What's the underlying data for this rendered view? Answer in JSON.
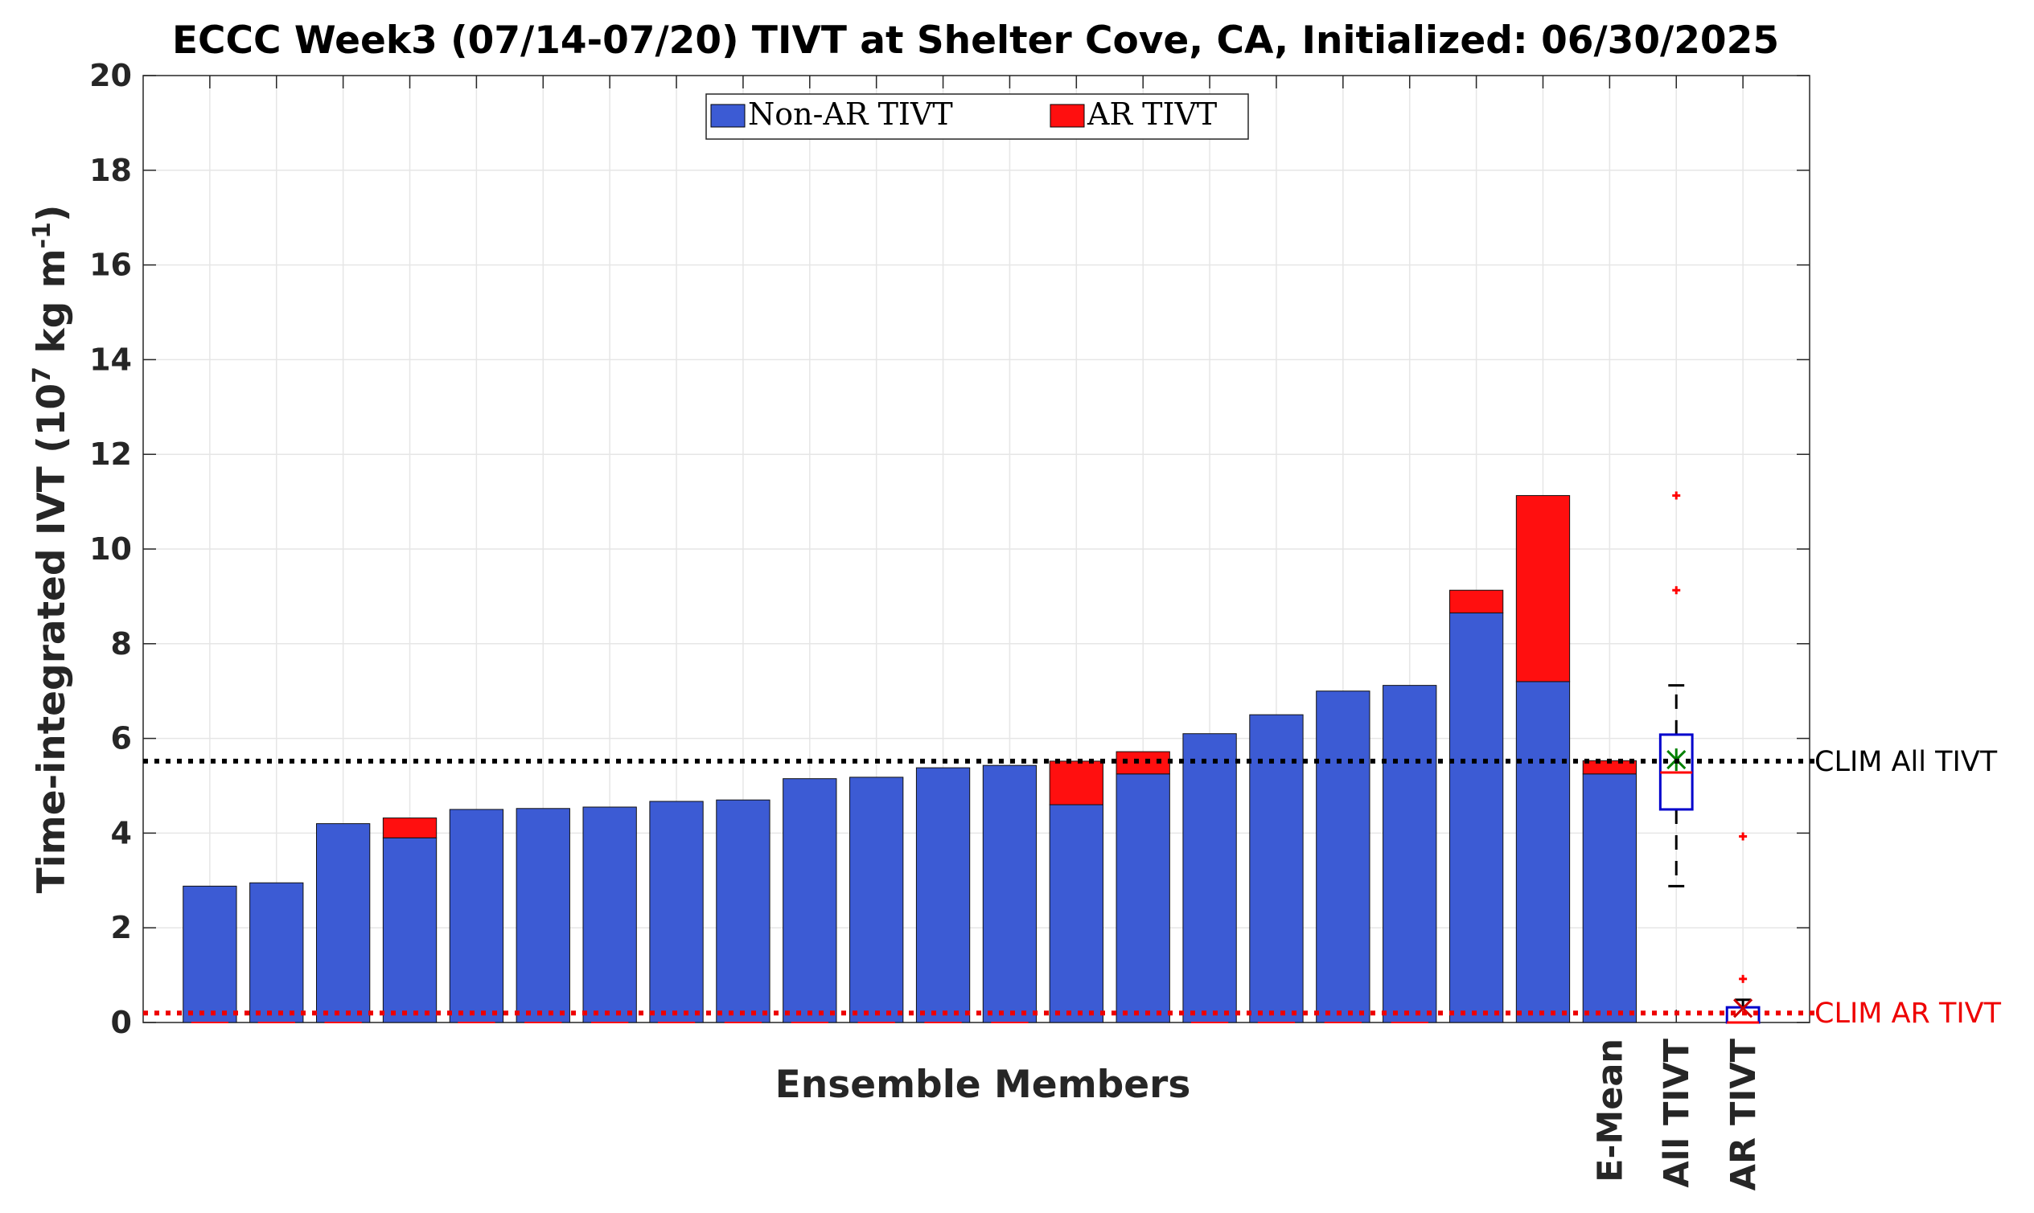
{
  "chart_data": {
    "type": "bar",
    "subtype": "stacked",
    "title": "ECCC Week3 (07/14-07/20) TIVT at Shelter Cove, CA, Initialized: 06/30/2025",
    "xlabel": "Ensemble Members",
    "ylabel": "Time-integrated IVT (10",
    "ylabel_exp1": "7",
    "ylabel_mid": " kg m",
    "ylabel_exp2": "-1",
    "ylabel_end": ")",
    "ylim": [
      0,
      20
    ],
    "yticks": [
      "0",
      "2",
      "4",
      "6",
      "8",
      "10",
      "12",
      "14",
      "16",
      "18",
      "20"
    ],
    "grid": true,
    "legend_position": "top-center",
    "series": [
      {
        "name": "Non-AR TIVT",
        "color": "#3c5bd4",
        "values": [
          2.88,
          2.95,
          4.2,
          3.9,
          4.5,
          4.52,
          4.55,
          4.67,
          4.7,
          5.15,
          5.18,
          5.38,
          5.43,
          4.6,
          5.25,
          6.1,
          6.5,
          7.0,
          7.12,
          8.65,
          7.2,
          5.25
        ]
      },
      {
        "name": "AR TIVT",
        "color": "#ff0f0f",
        "values": [
          0,
          0,
          0,
          0.42,
          0,
          0,
          0,
          0,
          0,
          0,
          0,
          0,
          0,
          0.92,
          0.47,
          0,
          0,
          0,
          0,
          0.48,
          3.93,
          0.28
        ]
      }
    ],
    "category_labels": [
      "",
      "",
      "",
      "",
      "",
      "",
      "",
      "",
      "",
      "",
      "",
      "",
      "",
      "",
      "",
      "",
      "",
      "",
      "",
      "",
      "",
      "E-Mean",
      "All TIVT",
      "AR TIVT"
    ],
    "boxplots": [
      {
        "label": "All TIVT",
        "box_color": "#0000cc",
        "q1": 4.5,
        "median": 5.28,
        "q3": 6.08,
        "whisker_low": 2.88,
        "whisker_high": 7.12,
        "mean": 5.55,
        "mean_color": "#008000",
        "outliers": [
          9.13,
          11.13
        ]
      },
      {
        "label": "AR TIVT",
        "box_color": "#0000cc",
        "q1": 0,
        "median": 0,
        "q3": 0.32,
        "whisker_low": 0,
        "whisker_high": 0.48,
        "mean": 0.3,
        "mean_color": "#cc0000",
        "outliers": [
          0.92,
          3.93
        ]
      }
    ],
    "reference_lines": [
      {
        "name": "CLIM All TIVT",
        "value": 5.52,
        "color": "#000000"
      },
      {
        "name": "CLIM AR TIVT",
        "value": 0.2,
        "color": "#ee0000"
      }
    ]
  }
}
